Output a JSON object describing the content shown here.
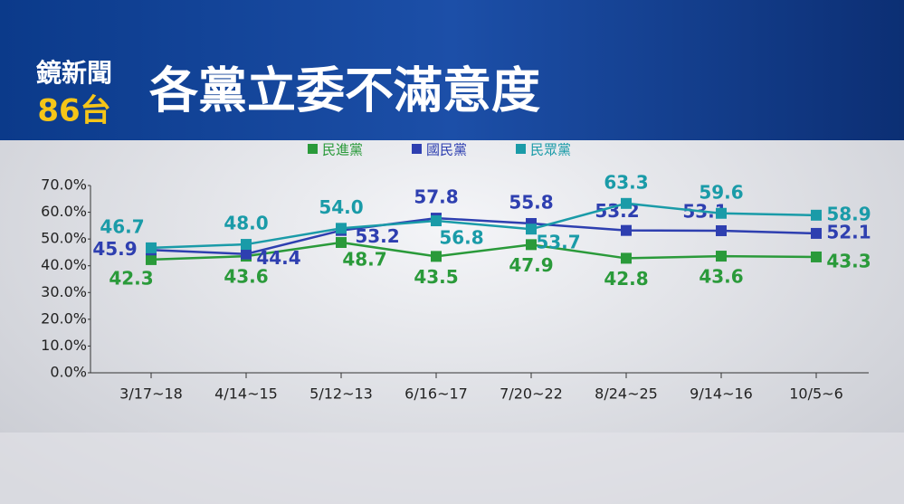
{
  "header": {
    "logo": "鏡新聞",
    "channel": "86台"
  },
  "chart_data": {
    "type": "line",
    "title": "各黨立委不滿意度",
    "categories": [
      "3/17~18",
      "4/14~15",
      "5/12~13",
      "6/16~17",
      "7/20~22",
      "8/24~25",
      "9/14~16",
      "10/5~6"
    ],
    "series": [
      {
        "name": "民進黨",
        "color": "#2a9a3a",
        "values": [
          42.3,
          43.6,
          48.7,
          43.5,
          47.9,
          42.8,
          43.6,
          43.3
        ],
        "value_labels": [
          "42.3",
          "43.6",
          "48.7",
          "43.5",
          "47.9",
          "42.8",
          "43.6",
          "43.3"
        ]
      },
      {
        "name": "國民黨",
        "color": "#2e3fb0",
        "values": [
          45.9,
          44.4,
          53.2,
          57.8,
          55.8,
          53.2,
          53.1,
          52.1
        ],
        "value_labels": [
          "45.9",
          "44.4",
          "53.2",
          "57.8",
          "55.8",
          "53.2",
          "53.1",
          "52.1"
        ]
      },
      {
        "name": "民眾黨",
        "color": "#1a9ba8",
        "values": [
          46.7,
          48.0,
          54.0,
          56.8,
          53.7,
          63.3,
          59.6,
          58.9
        ],
        "value_labels": [
          "46.7",
          "48.0",
          "54.0",
          "56.8",
          "53.7",
          "63.3",
          "59.6",
          "58.9"
        ]
      }
    ],
    "ylim": [
      0,
      70
    ],
    "yticks": [
      {
        "value": 0,
        "label": "0.0%"
      },
      {
        "value": 10,
        "label": "10.0%"
      },
      {
        "value": 20,
        "label": "20.0%"
      },
      {
        "value": 30,
        "label": "30.0%"
      },
      {
        "value": 40,
        "label": "40.0%"
      },
      {
        "value": 50,
        "label": "50.0%"
      },
      {
        "value": 60,
        "label": "60.0%"
      },
      {
        "value": 70,
        "label": "70.0%"
      }
    ],
    "grid": false
  }
}
